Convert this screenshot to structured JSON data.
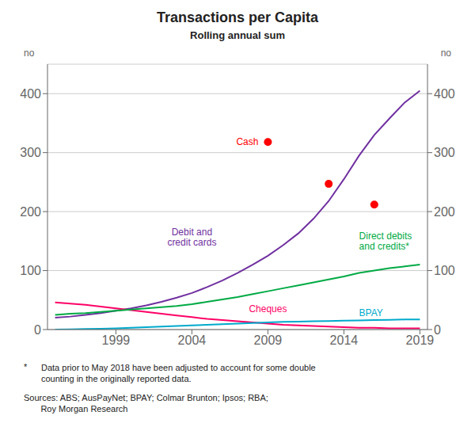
{
  "chart_data": {
    "type": "line",
    "title": "Transactions per Capita",
    "subtitle": "Rolling annual sum",
    "ylabel": "no",
    "y2label": "no",
    "x": [
      1995,
      1996,
      1997,
      1998,
      1999,
      2000,
      2001,
      2002,
      2003,
      2004,
      2005,
      2006,
      2007,
      2008,
      2009,
      2010,
      2011,
      2012,
      2013,
      2014,
      2015,
      2016,
      2017,
      2018,
      2019
    ],
    "xlim": [
      1994.5,
      2019.5
    ],
    "xticks": [
      1999,
      2004,
      2009,
      2014,
      2019
    ],
    "ylim": [
      0,
      450
    ],
    "yticks": [
      0,
      100,
      200,
      300,
      400
    ],
    "y2lim": [
      0,
      450
    ],
    "y2ticks": [
      0,
      100,
      200,
      300,
      400
    ],
    "grid": true,
    "series": [
      {
        "name": "Debit and\ncredit cards",
        "type": "line",
        "color": "#7030A0",
        "values": [
          20,
          22,
          25,
          28,
          32,
          36,
          41,
          47,
          54,
          62,
          72,
          83,
          96,
          110,
          125,
          143,
          163,
          188,
          218,
          255,
          295,
          330,
          358,
          385,
          405
        ]
      },
      {
        "name": "Cheques",
        "type": "line",
        "color": "#FF0066",
        "values": [
          46,
          44,
          42,
          39,
          36,
          33,
          30,
          27,
          24,
          21,
          18,
          16,
          14,
          12,
          10,
          8,
          7,
          6,
          5,
          4,
          3,
          3,
          2,
          2,
          2
        ]
      },
      {
        "name": "Direct debits\nand credits*",
        "type": "line",
        "color": "#00AA44",
        "values": [
          25,
          27,
          28,
          30,
          32,
          34,
          36,
          38,
          40,
          43,
          47,
          51,
          55,
          60,
          65,
          70,
          75,
          80,
          85,
          90,
          96,
          100,
          104,
          107,
          110
        ]
      },
      {
        "name": "BPAY",
        "type": "line",
        "color": "#00AACC",
        "values": [
          0,
          0.5,
          1,
          1.5,
          2,
          3,
          4,
          5,
          6,
          7,
          8,
          9,
          10,
          11,
          12,
          13,
          13.5,
          14,
          14.5,
          15,
          15.5,
          16,
          16.5,
          17,
          17
        ]
      },
      {
        "name": "Cash",
        "type": "scatter",
        "marker": "circle",
        "color": "#FF0000",
        "values": [
          null,
          null,
          null,
          null,
          null,
          null,
          null,
          null,
          null,
          null,
          null,
          null,
          null,
          null,
          318,
          null,
          null,
          null,
          247,
          null,
          null,
          212,
          null,
          null,
          null
        ]
      }
    ],
    "notes": [
      {
        "mark": "*",
        "text": "Data prior to May 2018 have been adjusted to account for some double\ncounting in the originally reported data."
      },
      {
        "text": "Sources: ABS; AusPayNet; BPAY; Colmar Brunton; Ipsos; RBA;\n       Roy Morgan Research"
      }
    ]
  }
}
